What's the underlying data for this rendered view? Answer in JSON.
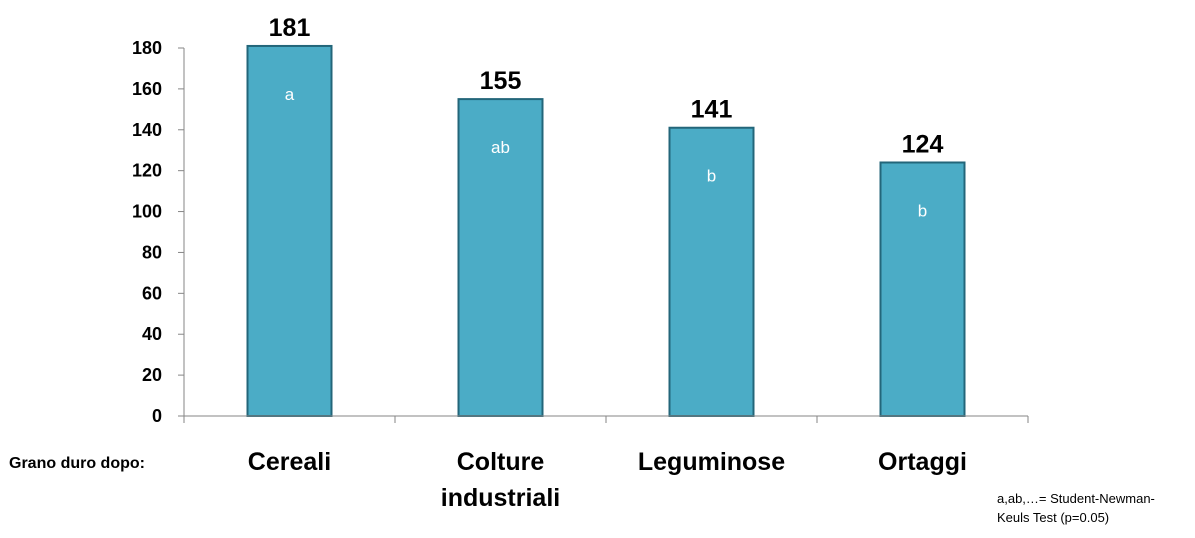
{
  "chart_data": {
    "type": "bar",
    "categories": [
      [
        "Cereali"
      ],
      [
        "Colture",
        "industriali"
      ],
      [
        "Leguminose"
      ],
      [
        "Ortaggi"
      ]
    ],
    "values": [
      181,
      155,
      141,
      124
    ],
    "value_labels": [
      "181",
      "155",
      "141",
      "124"
    ],
    "group_letters": [
      "a",
      "ab",
      "b",
      "b"
    ],
    "yticks": [
      0,
      20,
      40,
      60,
      80,
      100,
      120,
      140,
      160,
      180
    ],
    "ylim": [
      0,
      180
    ],
    "bar_color": "#4bacc6",
    "bar_edge_color": "#23667a",
    "grid": false,
    "legend": "none"
  },
  "row_label": "Grano duro dopo:",
  "footnote": {
    "line1": "a,ab,…= Student-Newman-",
    "line2": "Keuls Test (p=0.05)"
  }
}
